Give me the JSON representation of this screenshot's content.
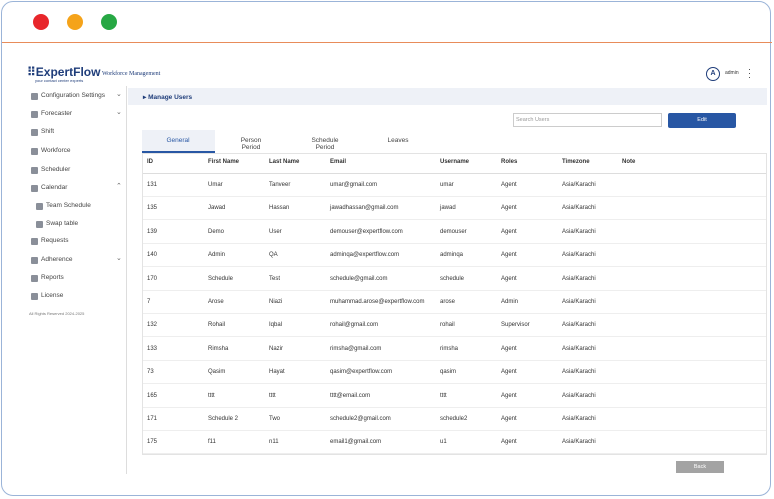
{
  "header": {
    "logo": "ExpertFlow",
    "tagline": "your contact center experts",
    "product": "Workforce Management",
    "avatar": "A",
    "user": "admin"
  },
  "sidebar": {
    "items": [
      "Configuration Settings",
      "Forecaster",
      "Shift",
      "Workforce",
      "Scheduler",
      "Calendar",
      "Team Schedule",
      "Swap table",
      "Requests",
      "Adherence",
      "Reports",
      "License"
    ],
    "footer": "All Rights Reserved 2024-2025"
  },
  "breadcrumb": "Manage Users",
  "search_placeholder": "Search Users",
  "buttons": {
    "edit": "Edit",
    "back": "Back"
  },
  "tabs": [
    "General",
    "Person Period",
    "Schedule Period",
    "Leaves"
  ],
  "table": {
    "columns": [
      "ID",
      "First Name",
      "Last Name",
      "Email",
      "Username",
      "Roles",
      "Timezone",
      "Note"
    ],
    "rows": [
      [
        "131",
        "Umar",
        "Tanveer",
        "umar@gmail.com",
        "umar",
        "Agent",
        "Asia/Karachi"
      ],
      [
        "135",
        "Jawad",
        "Hassan",
        "jawadhassan@gmail.com",
        "jawad",
        "Agent",
        "Asia/Karachi"
      ],
      [
        "139",
        "Demo",
        "User",
        "demouser@expertflow.com",
        "demouser",
        "Agent",
        "Asia/Karachi"
      ],
      [
        "140",
        "Admin",
        "QA",
        "adminqa@expertflow.com",
        "adminqa",
        "Agent",
        "Asia/Karachi"
      ],
      [
        "170",
        "Schedule",
        "Test",
        "schedule@gmail.com",
        "schedule",
        "Agent",
        "Asia/Karachi"
      ],
      [
        "7",
        "Arose",
        "Niazi",
        "muhammad.arose@expertflow.com",
        "arose",
        "Admin",
        "Asia/Karachi"
      ],
      [
        "132",
        "Rohail",
        "Iqbal",
        "rohail@gmail.com",
        "rohail",
        "Supervisor",
        "Asia/Karachi"
      ],
      [
        "133",
        "Rimsha",
        "Nazir",
        "rimsha@gmail.com",
        "rimsha",
        "Agent",
        "Asia/Karachi"
      ],
      [
        "73",
        "Qasim",
        "Hayat",
        "qasim@expertflow.com",
        "qasim",
        "Agent",
        "Asia/Karachi"
      ],
      [
        "165",
        "tttt",
        "tttt",
        "tttt@email.com",
        "tttt",
        "Agent",
        "Asia/Karachi"
      ],
      [
        "171",
        "Schedule 2",
        "Two",
        "schedule2@gmail.com",
        "schedule2",
        "Agent",
        "Asia/Karachi"
      ],
      [
        "175",
        "f11",
        "n11",
        "email1@gmail.com",
        "u1",
        "Agent",
        "Asia/Karachi"
      ]
    ]
  }
}
